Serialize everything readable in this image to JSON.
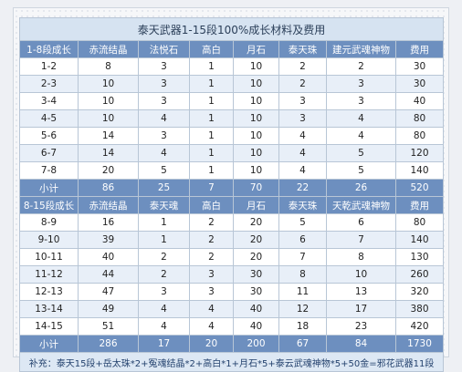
{
  "title": "泰天武器1-15段100%成长材料及费用",
  "section1": {
    "header": [
      "1-8段成长",
      "赤流结晶",
      "法悦石",
      "高白",
      "月石",
      "泰天珠",
      "建元武魂神物",
      "费用"
    ],
    "rows": [
      [
        "1-2",
        "8",
        "3",
        "1",
        "10",
        "2",
        "2",
        "30"
      ],
      [
        "2-3",
        "10",
        "3",
        "1",
        "10",
        "2",
        "3",
        "30"
      ],
      [
        "3-4",
        "10",
        "3",
        "1",
        "10",
        "3",
        "3",
        "40"
      ],
      [
        "4-5",
        "10",
        "4",
        "1",
        "10",
        "3",
        "4",
        "80"
      ],
      [
        "5-6",
        "14",
        "3",
        "1",
        "10",
        "4",
        "4",
        "80"
      ],
      [
        "6-7",
        "14",
        "4",
        "1",
        "10",
        "4",
        "5",
        "120"
      ],
      [
        "7-8",
        "20",
        "5",
        "1",
        "10",
        "4",
        "5",
        "140"
      ]
    ],
    "subtotal": [
      "小计",
      "86",
      "25",
      "7",
      "70",
      "22",
      "26",
      "520"
    ]
  },
  "section2": {
    "header": [
      "8-15段成长",
      "赤流结晶",
      "泰天魂",
      "高白",
      "月石",
      "泰天珠",
      "天乾武魂神物",
      "费用"
    ],
    "rows": [
      [
        "8-9",
        "16",
        "1",
        "2",
        "20",
        "5",
        "6",
        "80"
      ],
      [
        "9-10",
        "39",
        "1",
        "2",
        "20",
        "6",
        "7",
        "140"
      ],
      [
        "10-11",
        "40",
        "2",
        "2",
        "20",
        "7",
        "8",
        "130"
      ],
      [
        "11-12",
        "44",
        "2",
        "3",
        "30",
        "8",
        "10",
        "260"
      ],
      [
        "12-13",
        "47",
        "3",
        "3",
        "30",
        "11",
        "13",
        "320"
      ],
      [
        "13-14",
        "49",
        "4",
        "4",
        "40",
        "12",
        "17",
        "380"
      ],
      [
        "14-15",
        "51",
        "4",
        "4",
        "40",
        "18",
        "23",
        "420"
      ]
    ],
    "subtotal": [
      "小计",
      "286",
      "17",
      "20",
      "200",
      "67",
      "84",
      "1730"
    ]
  },
  "note": "补充：泰天15段+岳太珠*2+冤魂结晶*2+高白*1+月石*5+泰云武魂神物*5+50金=邪花武器11段"
}
